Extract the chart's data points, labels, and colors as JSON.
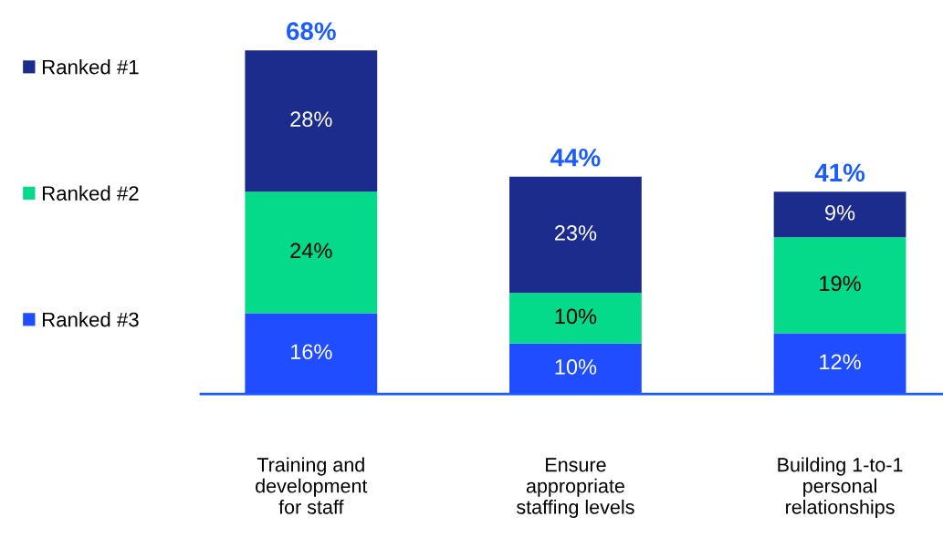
{
  "chart_data": {
    "type": "bar",
    "stacked": true,
    "categories": [
      "Training and\ndevelopment\nfor staff",
      "Ensure\nappropriate\nstaffing levels",
      "Building 1-to-1\npersonal\nrelationships"
    ],
    "series": [
      {
        "name": "Ranked #3",
        "color": "#1f4dff",
        "values": [
          16,
          10,
          12
        ],
        "value_labels": [
          "16%",
          "10%",
          "12%"
        ]
      },
      {
        "name": "Ranked #2",
        "color": "#05d98a",
        "values": [
          24,
          10,
          19
        ],
        "value_labels": [
          "24%",
          "10%",
          "19%"
        ]
      },
      {
        "name": "Ranked #1",
        "color": "#1c2c8c",
        "values": [
          28,
          23,
          9
        ],
        "value_labels": [
          "28%",
          "23%",
          "9%"
        ]
      }
    ],
    "totals": [
      "68%",
      "44%",
      "41%"
    ],
    "legend": "left",
    "grid": false,
    "tick_labels": "x"
  }
}
